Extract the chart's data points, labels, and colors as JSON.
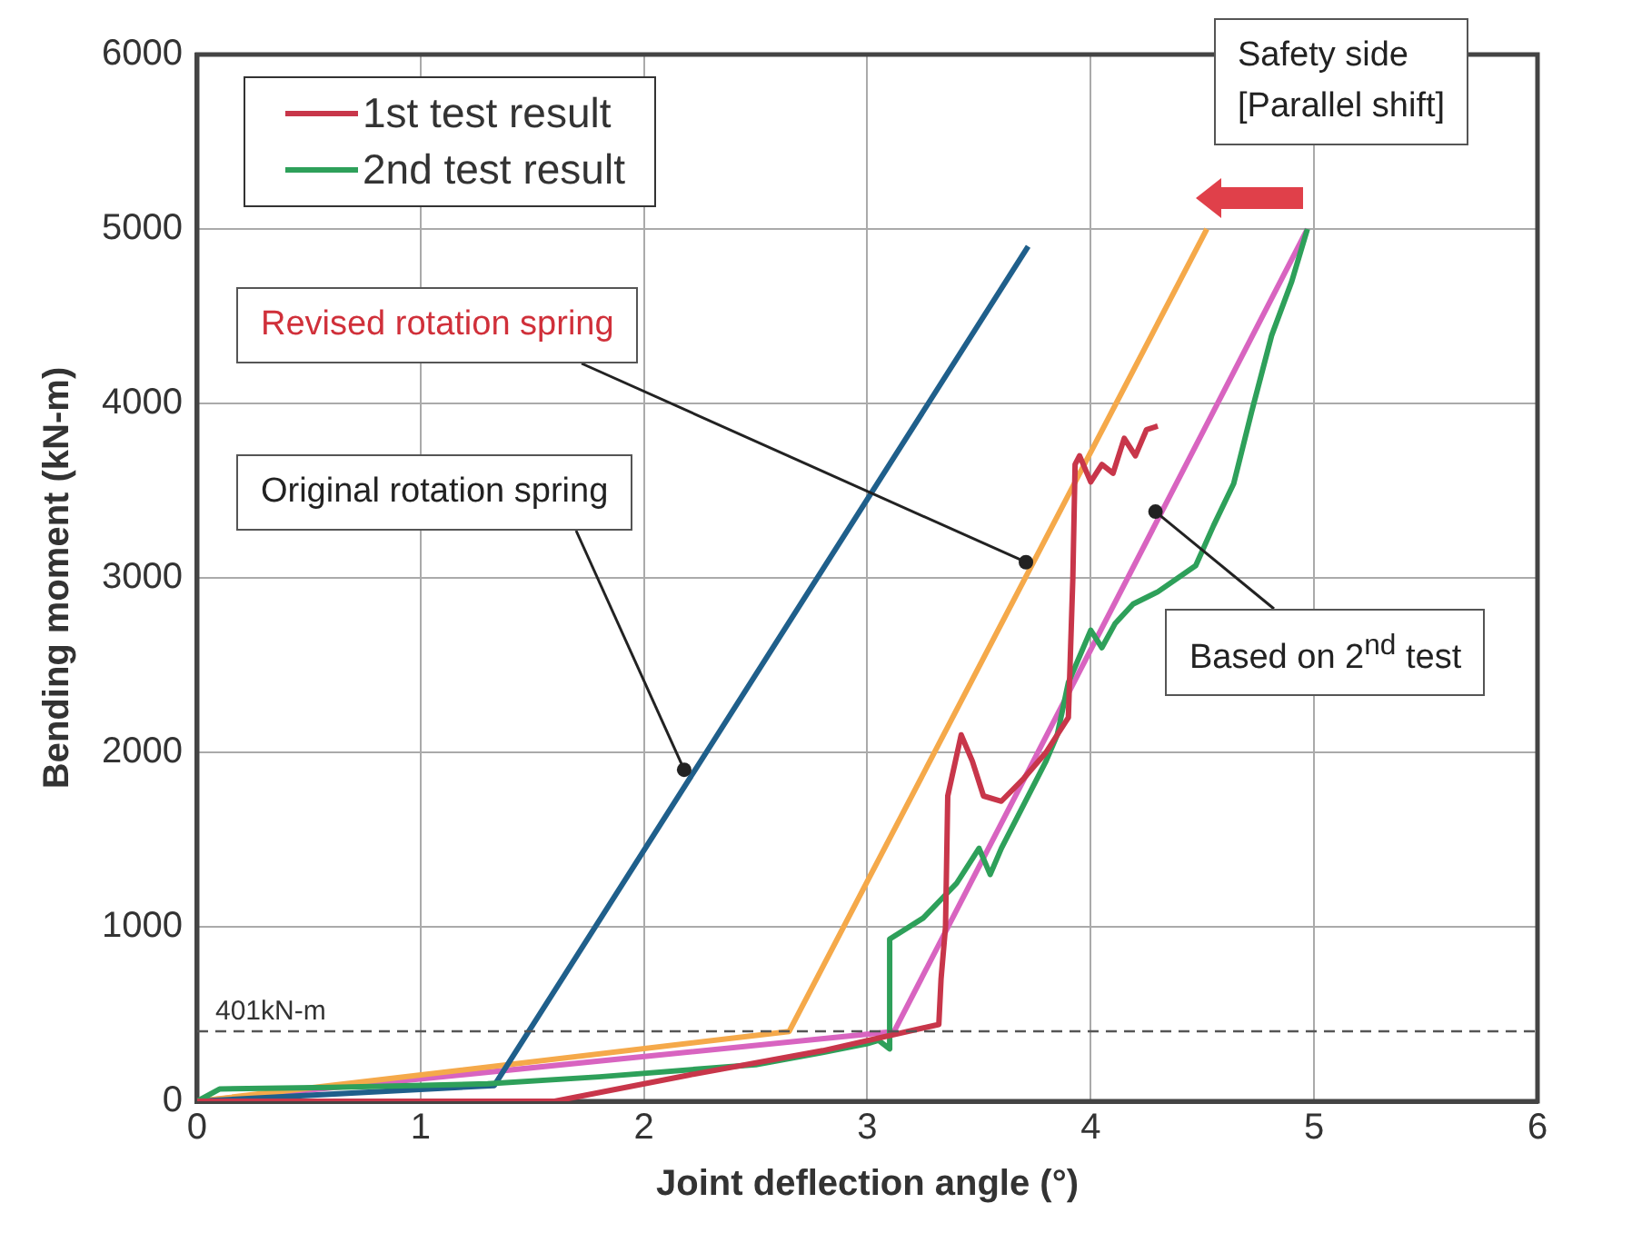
{
  "chart_data": {
    "type": "line",
    "xlabel": "Joint deflection angle (°)",
    "ylabel": "Bending moment (kN-m)",
    "xlim": [
      0,
      6
    ],
    "ylim": [
      0,
      6000
    ],
    "xticks": [
      0,
      1,
      2,
      3,
      4,
      5,
      6
    ],
    "yticks": [
      0,
      1000,
      2000,
      3000,
      4000,
      5000,
      6000
    ],
    "grid": true,
    "legend": "top left",
    "marker": "none",
    "line_style": "solid",
    "series": [
      {
        "name": "1st test result",
        "color": "#c8364a",
        "x": [
          0,
          0.5,
          1.0,
          1.6,
          2.2,
          2.8,
          3.32,
          3.33,
          3.35,
          3.36,
          3.42,
          3.47,
          3.52,
          3.6,
          3.7,
          3.8,
          3.9,
          3.92,
          3.93,
          3.95,
          4.0,
          4.05,
          4.1,
          4.15,
          4.2,
          4.25,
          4.3
        ],
        "values": [
          0,
          0,
          0,
          0,
          150,
          290,
          440,
          700,
          1000,
          1750,
          2100,
          1950,
          1750,
          1720,
          1850,
          2000,
          2200,
          3000,
          3650,
          3700,
          3550,
          3650,
          3600,
          3800,
          3700,
          3850,
          3870
        ]
      },
      {
        "name": "2nd test result",
        "color": "#2ea05a",
        "x": [
          0,
          0.1,
          0.6,
          1.3,
          1.8,
          2.5,
          2.8,
          3.0,
          3.05,
          3.1,
          3.1,
          3.25,
          3.4,
          3.5,
          3.55,
          3.6,
          3.7,
          3.8,
          3.85,
          3.9,
          4.0,
          4.05,
          4.11,
          4.19,
          4.3,
          4.47,
          4.55,
          4.64,
          4.72,
          4.81,
          4.9,
          4.97
        ],
        "values": [
          0,
          70,
          80,
          100,
          140,
          210,
          280,
          330,
          350,
          300,
          930,
          1050,
          1250,
          1450,
          1300,
          1450,
          1700,
          1950,
          2100,
          2400,
          2700,
          2600,
          2740,
          2850,
          2920,
          3070,
          3300,
          3540,
          3950,
          4390,
          4700,
          5000
        ]
      },
      {
        "color": "#1f5f8b",
        "x": [
          0,
          1.33,
          3.72
        ],
        "values": [
          0,
          90,
          4900
        ]
      },
      {
        "color": "#f5a94a",
        "x": [
          0,
          2.65,
          4.52
        ],
        "values": [
          0,
          400,
          5000
        ]
      },
      {
        "color": "#d864c0",
        "x": [
          0,
          3.12,
          4.97
        ],
        "values": [
          0,
          400,
          5000
        ]
      }
    ],
    "ref_lines": [
      {
        "axis": "y",
        "value": 401,
        "label": "401kN-m",
        "color": "#555555",
        "line_style": "dashed"
      }
    ],
    "annotations": [
      "Safety side\n[Parallel shift]",
      {
        "text": "Revised rotation spring",
        "x": 3.71,
        "y": 3090
      },
      {
        "text": "Original rotation spring",
        "x": 2.18,
        "y": 1900
      },
      {
        "text": "Based on 2$^{nd}$ test",
        "x": 4.29,
        "y": 3380
      }
    ]
  }
}
